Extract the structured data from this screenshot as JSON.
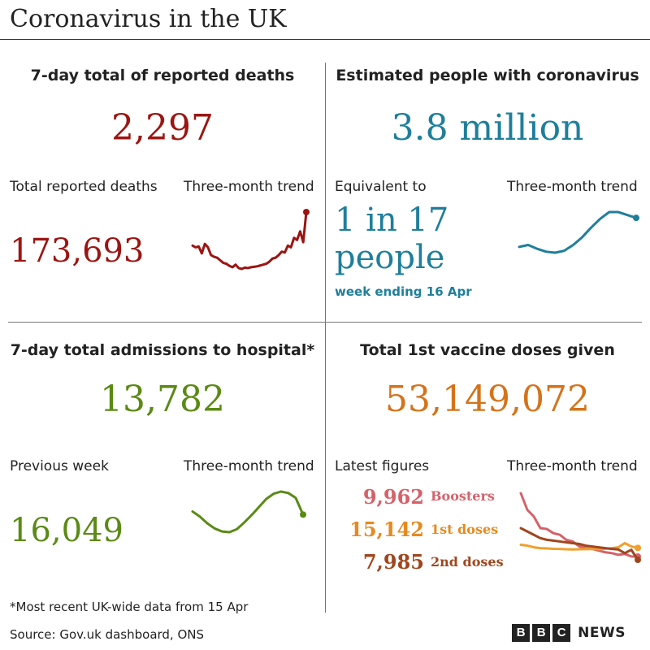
{
  "title": "Coronavirus in the UK",
  "colors": {
    "deaths": "#9b1512",
    "infections": "#1f7f9b",
    "hospital": "#5a8a14",
    "vaccine": "#d4731a",
    "boosters": "#d5626a",
    "first_doses": "#f0a02c",
    "second_doses": "#a0461e"
  },
  "deaths": {
    "heading": "7-day total of reported deaths",
    "value": "2,297",
    "total_label": "Total reported deaths",
    "total_value": "173,693",
    "trend_label": "Three-month trend"
  },
  "infections": {
    "heading": "Estimated people with coronavirus",
    "value": "3.8 million",
    "equiv_label": "Equivalent to",
    "equiv_line1": "1 in 17",
    "equiv_line2": "people",
    "week_note": "week ending 16 Apr",
    "trend_label": "Three-month trend"
  },
  "hospital": {
    "heading": "7-day total admissions to hospital*",
    "value": "13,782",
    "prev_label": "Previous week",
    "prev_value": "16,049",
    "trend_label": "Three-month trend"
  },
  "vaccine": {
    "heading": "Total 1st vaccine doses given",
    "value": "53,149,072",
    "latest_label": "Latest figures",
    "trend_label": "Three-month trend",
    "items": [
      {
        "value": "9,962",
        "label": "Boosters"
      },
      {
        "value": "15,142",
        "label": "1st doses"
      },
      {
        "value": "7,985",
        "label": "2nd doses"
      }
    ]
  },
  "footnote": "*Most recent UK-wide data from 15 Apr",
  "source": "Source: Gov.uk dashboard, ONS",
  "brand": {
    "letters": [
      "B",
      "B",
      "C"
    ],
    "word": "NEWS"
  },
  "chart_data": [
    {
      "type": "line",
      "title": "Three-month trend",
      "series": [
        {
          "values": [
            1520,
            1480,
            1500,
            1340,
            1560,
            1480,
            1300,
            1260,
            1240,
            1180,
            1120,
            1100,
            1050,
            1020,
            1080,
            1000,
            980,
            1010,
            1000,
            1020,
            1030,
            1040,
            1060,
            1080,
            1100,
            1150,
            1220,
            1240,
            1300,
            1380,
            1360,
            1520,
            1480,
            1700,
            1650,
            1850,
            1600,
            2297
          ]
        }
      ]
    },
    {
      "type": "line",
      "title": "Three-month trend",
      "series": [
        {
          "values": [
            2.3,
            2.4,
            2.2,
            2.05,
            2.0,
            2.1,
            2.4,
            2.8,
            3.3,
            3.75,
            4.1,
            4.1,
            3.95,
            3.8
          ]
        }
      ]
    },
    {
      "type": "line",
      "title": "Three-month trend",
      "series": [
        {
          "values": [
            14200,
            13500,
            12600,
            11900,
            11500,
            11400,
            11800,
            12700,
            13700,
            14800,
            15900,
            16600,
            16900,
            16700,
            16049,
            13782
          ]
        }
      ]
    },
    {
      "type": "line",
      "title": "Three-month trend",
      "series": [
        {
          "name": "Boosters",
          "values": [
            48000,
            38000,
            34000,
            27000,
            26500,
            24000,
            23000,
            20000,
            19000,
            16000,
            15000,
            14500,
            13500,
            12500,
            12000,
            11000,
            11500,
            10000,
            9962
          ]
        },
        {
          "name": "1st doses",
          "values": [
            17000,
            16500,
            15500,
            15000,
            14800,
            14600,
            14500,
            14300,
            14200,
            14300,
            14400,
            14500,
            14400,
            14600,
            15000,
            15500,
            18000,
            16000,
            15142
          ]
        },
        {
          "name": "2nd doses",
          "values": [
            27000,
            25000,
            23000,
            21000,
            20000,
            19500,
            19000,
            18500,
            18000,
            17500,
            16500,
            16000,
            15500,
            15000,
            14500,
            14200,
            12000,
            14000,
            7985
          ]
        }
      ]
    }
  ]
}
